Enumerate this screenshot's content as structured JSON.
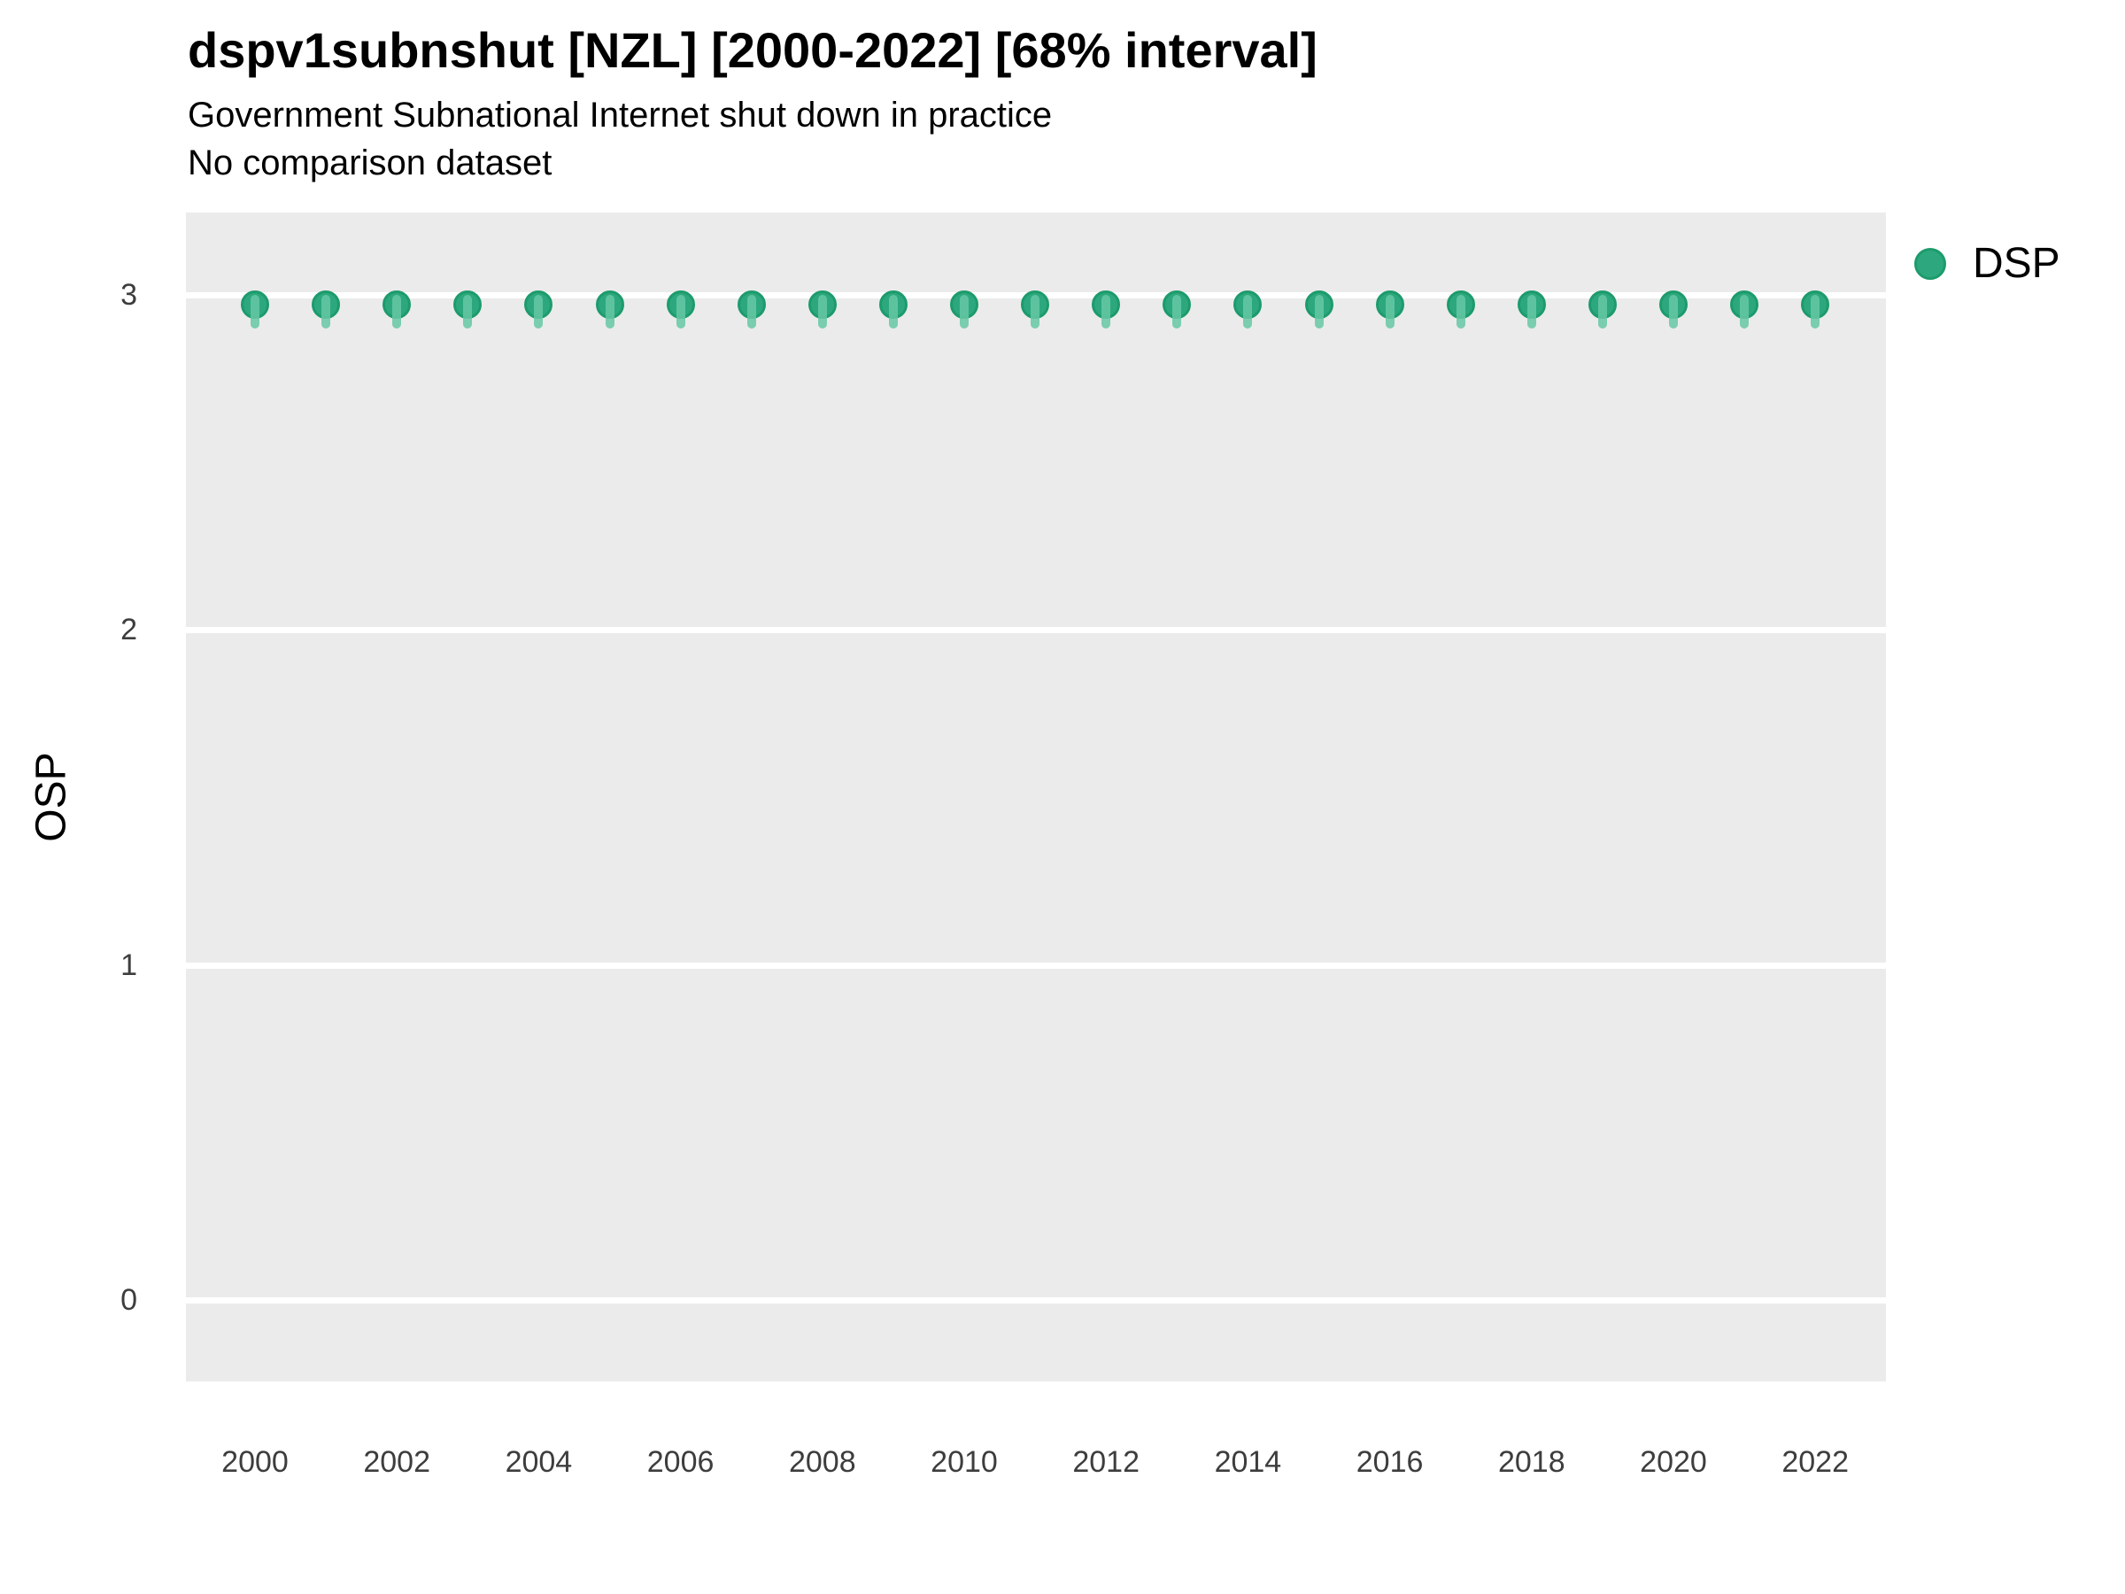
{
  "header": {
    "title": "dspv1subnshut [NZL] [2000-2022] [68% interval]",
    "subtitle": "Government Subnational Internet shut down in practice",
    "caption": "No comparison dataset"
  },
  "legend": {
    "items": [
      {
        "label": "DSP",
        "swatch": "circle",
        "color": "#2DA87E"
      }
    ]
  },
  "axes": {
    "y_title": "OSP",
    "y_ticks": [
      "3",
      "2",
      "1",
      "0"
    ],
    "y_tick_values": [
      3,
      2,
      1,
      0
    ],
    "x_ticks": [
      "2000",
      "2002",
      "2004",
      "2006",
      "2008",
      "2010",
      "2012",
      "2014",
      "2016",
      "2018",
      "2020",
      "2022"
    ],
    "x_tick_values": [
      2000,
      2002,
      2004,
      2006,
      2008,
      2010,
      2012,
      2014,
      2016,
      2018,
      2020,
      2022
    ]
  },
  "colors": {
    "panel_background": "#EBEBEB",
    "gridline": "#FFFFFF",
    "point_fill": "#2DA87E",
    "point_edge": "#1D9B6C",
    "interval_line": "rgba(102, 200, 165, 0.85)",
    "tick_text": "#3d3d3d",
    "text": "#000000"
  },
  "chart_data": {
    "type": "scatter",
    "title": "dspv1subnshut [NZL] [2000-2022] [68% interval]",
    "subtitle": "Government Subnational Internet shut down in practice",
    "caption": "No comparison dataset",
    "xlabel": "",
    "ylabel": "OSP",
    "xlim": [
      1999,
      2023
    ],
    "ylim": [
      -0.24,
      3.26
    ],
    "grid": "major-horizontal-only",
    "legend_position": "right",
    "series": [
      {
        "name": "DSP",
        "x": [
          2000,
          2001,
          2002,
          2003,
          2004,
          2005,
          2006,
          2007,
          2008,
          2009,
          2010,
          2011,
          2012,
          2013,
          2014,
          2015,
          2016,
          2017,
          2018,
          2019,
          2020,
          2021,
          2022
        ],
        "y": [
          2.97,
          2.97,
          2.97,
          2.97,
          2.97,
          2.97,
          2.97,
          2.97,
          2.97,
          2.97,
          2.97,
          2.97,
          2.97,
          2.97,
          2.97,
          2.97,
          2.97,
          2.97,
          2.97,
          2.97,
          2.97,
          2.97,
          2.97
        ],
        "interval_low": [
          2.9,
          2.9,
          2.9,
          2.9,
          2.9,
          2.9,
          2.9,
          2.9,
          2.9,
          2.9,
          2.9,
          2.9,
          2.9,
          2.9,
          2.9,
          2.9,
          2.9,
          2.9,
          2.9,
          2.9,
          2.9,
          2.9,
          2.9
        ],
        "interval_high": [
          3.0,
          3.0,
          3.0,
          3.0,
          3.0,
          3.0,
          3.0,
          3.0,
          3.0,
          3.0,
          3.0,
          3.0,
          3.0,
          3.0,
          3.0,
          3.0,
          3.0,
          3.0,
          3.0,
          3.0,
          3.0,
          3.0,
          3.0
        ]
      }
    ]
  }
}
